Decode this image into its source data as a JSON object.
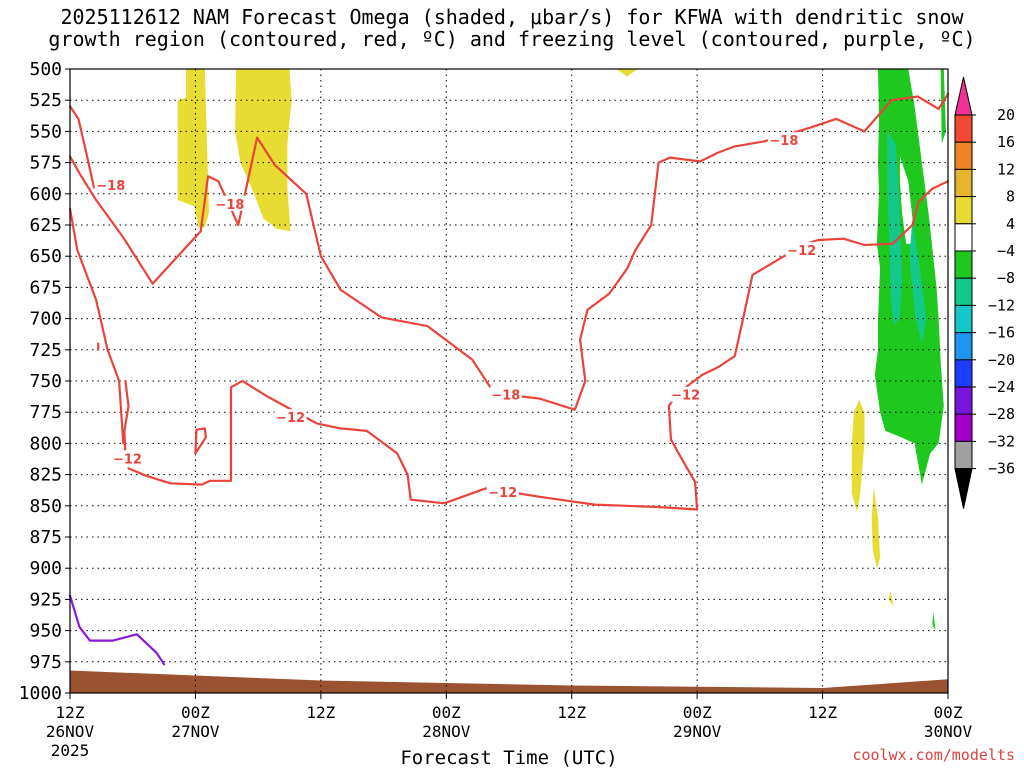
{
  "title_line1": "2025112612 NAM Forecast Omega (shaded, μbar/s) for KFWA with dendritic snow",
  "title_line2": "growth region (contoured, red, ºC) and freezing level (contoured, purple, ºC)",
  "credit": "coolwx.com/modelts",
  "chart_data": {
    "type": "contour",
    "xlabel": "Forecast Time (UTC)",
    "ylabel": "",
    "x_unit": "forecast hours from 2025-11-26 12Z",
    "xlim": [
      0,
      84
    ],
    "ylim": [
      1000,
      500
    ],
    "x_ticks": [
      {
        "x": 0,
        "label": "12Z",
        "date": "26NOV",
        "year": "2025"
      },
      {
        "x": 12,
        "label": "00Z",
        "date": "27NOV"
      },
      {
        "x": 24,
        "label": "12Z"
      },
      {
        "x": 36,
        "label": "00Z",
        "date": "28NOV"
      },
      {
        "x": 48,
        "label": "12Z"
      },
      {
        "x": 60,
        "label": "00Z",
        "date": "29NOV"
      },
      {
        "x": 72,
        "label": "12Z"
      },
      {
        "x": 84,
        "label": "00Z",
        "date": "30NOV"
      }
    ],
    "y_ticks": [
      500,
      525,
      550,
      575,
      600,
      625,
      650,
      675,
      700,
      725,
      750,
      775,
      800,
      825,
      850,
      875,
      900,
      925,
      950,
      975,
      1000
    ],
    "grid": true,
    "colorbar": {
      "labels": [
        "20",
        "16",
        "12",
        "8",
        "4",
        "−4",
        "−8",
        "−12",
        "−16",
        "−20",
        "−24",
        "−28",
        "−32",
        "−36"
      ],
      "colors": [
        "#f03296",
        "#f04b32",
        "#f08228",
        "#e6b42d",
        "#e6dc32",
        "#ffffff",
        "#1ec81e",
        "#14c88c",
        "#14c8c8",
        "#1e96f0",
        "#1e3cff",
        "#7814dc",
        "#a000c8",
        "#a0a0a0",
        "#000000"
      ]
    },
    "contour_labels": [
      {
        "text": "−18",
        "x": 3.9,
        "p": 593
      },
      {
        "text": "−18",
        "x": 15.3,
        "p": 608
      },
      {
        "text": "−18",
        "x": 41.7,
        "p": 761
      },
      {
        "text": "−18",
        "x": 68.3,
        "p": 557
      },
      {
        "text": "−12",
        "x": 5.5,
        "p": 812
      },
      {
        "text": "−12",
        "x": 21.1,
        "p": 779
      },
      {
        "text": "−12",
        "x": 41.4,
        "p": 839
      },
      {
        "text": "−12",
        "x": 58.9,
        "p": 761
      },
      {
        "text": "−12",
        "x": 70.0,
        "p": 645
      }
    ],
    "series": [
      {
        "name": "−18",
        "color": "#e8443c",
        "paths": [
          [
            [
              0,
              530
            ],
            [
              0.8,
              540
            ],
            [
              1.5,
              565
            ],
            [
              2.3,
              595
            ]
          ],
          [
            [
              0,
              612
            ],
            [
              0.7,
              645
            ],
            [
              2.5,
              685
            ],
            [
              3.6,
              725
            ],
            [
              4.7,
              750
            ],
            [
              5.1,
              800
            ]
          ],
          [
            [
              0,
              570
            ],
            [
              1.0,
              585
            ],
            [
              2.5,
              605
            ],
            [
              5.1,
              635
            ],
            [
              7.9,
              672
            ],
            [
              12.5,
              630
            ],
            [
              13.2,
              586
            ],
            [
              14.2,
              590
            ],
            [
              16.1,
              625
            ],
            [
              17.9,
              555
            ],
            [
              19.6,
              577
            ],
            [
              22.6,
              600
            ],
            [
              24.0,
              650
            ],
            [
              25.9,
              677
            ],
            [
              29.8,
              699
            ],
            [
              34.2,
              706
            ],
            [
              38.5,
              733
            ],
            [
              40.6,
              760
            ],
            [
              44.9,
              764
            ],
            [
              48.3,
              773
            ],
            [
              49.3,
              750
            ],
            [
              48.8,
              717
            ],
            [
              49.5,
              693
            ],
            [
              51.6,
              680
            ],
            [
              53.3,
              660
            ],
            [
              54.1,
              645
            ],
            [
              55.6,
              625
            ],
            [
              56.3,
              575
            ],
            [
              57.4,
              571
            ],
            [
              59.3,
              573
            ],
            [
              60.3,
              574
            ],
            [
              62.0,
              567
            ],
            [
              63.6,
              562
            ],
            [
              66.4,
              558
            ],
            [
              70.8,
              547
            ],
            [
              73.3,
              540
            ],
            [
              76.0,
              550
            ],
            [
              78.6,
              525
            ],
            [
              81.1,
              522
            ],
            [
              83.1,
              532
            ],
            [
              84,
              520
            ]
          ]
        ]
      },
      {
        "name": "−12",
        "color": "#e8443c",
        "paths": [
          [
            [
              5.3,
              810
            ],
            [
              5.2,
              790
            ],
            [
              5.6,
              770
            ],
            [
              5.3,
              750
            ]
          ],
          [
            [
              5.6,
              820
            ],
            [
              7.3,
              826
            ],
            [
              9.6,
              832
            ],
            [
              12.6,
              833
            ],
            [
              13.4,
              830
            ],
            [
              15.4,
              830
            ],
            [
              15.4,
              755
            ],
            [
              16.5,
              750
            ],
            [
              18.8,
              762
            ],
            [
              23.6,
              784
            ],
            [
              25.9,
              788
            ],
            [
              28.4,
              790
            ],
            [
              31.3,
              808
            ],
            [
              32.3,
              825
            ],
            [
              32.6,
              845
            ],
            [
              35.8,
              848
            ],
            [
              39.8,
              836
            ],
            [
              45.1,
              843
            ],
            [
              50.2,
              849
            ],
            [
              56.2,
              851
            ],
            [
              60,
              853
            ],
            [
              59.8,
              831
            ],
            [
              58.5,
              812
            ],
            [
              57.5,
              797
            ],
            [
              57.3,
              770
            ],
            [
              58.1,
              760
            ],
            [
              60.5,
              745
            ],
            [
              62.0,
              739
            ],
            [
              63.6,
              730
            ],
            [
              64.4,
              700
            ],
            [
              65.3,
              665
            ],
            [
              68.9,
              647
            ],
            [
              70.4,
              640
            ],
            [
              71.6,
              637
            ],
            [
              74.0,
              636
            ],
            [
              76.0,
              641
            ],
            [
              78.7,
              640
            ],
            [
              80.6,
              625
            ],
            [
              81.2,
              606
            ],
            [
              82.5,
              596
            ],
            [
              84,
              590
            ]
          ],
          [
            [
              12.0,
              808
            ],
            [
              13.0,
              795
            ],
            [
              12.9,
              788
            ],
            [
              12.1,
              789
            ],
            [
              12.0,
              808
            ]
          ],
          [
            [
              2.7,
              720
            ],
            [
              2.7,
              725
            ]
          ]
        ]
      },
      {
        "name": "freezing level",
        "color": "#8a1ad6",
        "paths": [
          [
            [
              0,
              922
            ],
            [
              0.9,
              947
            ],
            [
              1.9,
              958
            ],
            [
              4.1,
              958
            ],
            [
              6.4,
              953
            ],
            [
              8.3,
              968
            ],
            [
              9.0,
              977
            ]
          ]
        ]
      }
    ],
    "shaded_regions": [
      {
        "value_range": "4 to 8",
        "color": "#e6dc32",
        "polygons": [
          [
            [
              10.3,
              525
            ],
            [
              11.1,
              523
            ],
            [
              11.1,
              500
            ],
            [
              12.0,
              500
            ],
            [
              12.9,
              500
            ],
            [
              13.3,
              615
            ],
            [
              12.9,
              627
            ],
            [
              12.3,
              627
            ],
            [
              11.9,
              610
            ],
            [
              10.3,
              605
            ]
          ],
          [
            [
              15.9,
              500
            ],
            [
              16.8,
              500
            ],
            [
              18.9,
              500
            ],
            [
              20.1,
              500
            ],
            [
              21.0,
              500
            ],
            [
              21.2,
              525
            ],
            [
              20.8,
              560
            ],
            [
              20.8,
              595
            ],
            [
              21.1,
              630
            ],
            [
              19.8,
              628
            ],
            [
              18.5,
              620
            ],
            [
              17.6,
              600
            ],
            [
              16.3,
              575
            ],
            [
              15.8,
              550
            ]
          ],
          [
            [
              52.3,
              500
            ],
            [
              54.3,
              500
            ],
            [
              53.3,
              506
            ]
          ],
          [
            [
              75.5,
              765
            ],
            [
              76.0,
              775
            ],
            [
              76.0,
              800
            ],
            [
              75.6,
              840
            ],
            [
              75.3,
              855
            ],
            [
              74.8,
              840
            ],
            [
              74.8,
              800
            ],
            [
              75.0,
              775
            ]
          ],
          [
            [
              76.9,
              835
            ],
            [
              77.3,
              860
            ],
            [
              77.5,
              892
            ],
            [
              77.2,
              900
            ],
            [
              76.8,
              885
            ],
            [
              76.7,
              860
            ]
          ],
          [
            [
              78.5,
              918
            ],
            [
              78.8,
              930
            ],
            [
              78.3,
              925
            ]
          ]
        ]
      },
      {
        "value_range": "-8 to -4",
        "color": "#1ec81e",
        "polygons": [
          [
            [
              77.3,
              500
            ],
            [
              80.2,
              500
            ],
            [
              80.8,
              530
            ],
            [
              81.5,
              575
            ],
            [
              82.2,
              620
            ],
            [
              82.9,
              675
            ],
            [
              83.1,
              700
            ],
            [
              83.3,
              735
            ],
            [
              83.6,
              770
            ],
            [
              83.1,
              800
            ],
            [
              82.3,
              808
            ],
            [
              81.5,
              833
            ],
            [
              80.8,
              800
            ],
            [
              79.5,
              795
            ],
            [
              78.0,
              790
            ],
            [
              77.5,
              775
            ],
            [
              77.0,
              745
            ],
            [
              77.3,
              725
            ],
            [
              77.3,
              700
            ],
            [
              77.5,
              660
            ],
            [
              77.2,
              640
            ],
            [
              77.4,
              600
            ],
            [
              77.3,
              575
            ],
            [
              77.4,
              540
            ]
          ],
          [
            [
              83.3,
              500
            ],
            [
              83.6,
              500
            ],
            [
              83.8,
              550
            ],
            [
              83.4,
              560
            ]
          ],
          [
            [
              82.6,
              935
            ],
            [
              82.8,
              950
            ],
            [
              82.5,
              945
            ]
          ]
        ]
      },
      {
        "value_range": "-12 to -8",
        "color": "#14c88c",
        "polygons": [
          [
            [
              78.2,
              550
            ],
            [
              79.0,
              560
            ],
            [
              79.3,
              600
            ],
            [
              79.5,
              640
            ],
            [
              79.6,
              670
            ],
            [
              79.4,
              700
            ],
            [
              78.8,
              705
            ],
            [
              78.5,
              680
            ],
            [
              78.4,
              640
            ],
            [
              78.2,
              600
            ]
          ],
          [
            [
              80.1,
              590
            ],
            [
              80.6,
              620
            ],
            [
              81.3,
              660
            ],
            [
              81.9,
              700
            ],
            [
              81.5,
              720
            ],
            [
              80.9,
              700
            ],
            [
              80.4,
              660
            ],
            [
              80.2,
              620
            ]
          ]
        ]
      },
      {
        "value_range": "4 to -4",
        "color": "#ffffff",
        "polygons": [
          [
            [
              79.4,
              570
            ],
            [
              80.2,
              590
            ],
            [
              80.6,
              620
            ],
            [
              80.4,
              640
            ],
            [
              80.0,
              640
            ],
            [
              79.6,
              615
            ],
            [
              79.4,
              590
            ]
          ]
        ]
      }
    ],
    "terrain": {
      "color": "#9b5230",
      "top_pressure": [
        [
          0,
          982
        ],
        [
          12,
          986
        ],
        [
          24,
          990
        ],
        [
          36,
          992
        ],
        [
          48,
          994
        ],
        [
          60,
          995
        ],
        [
          72,
          996
        ],
        [
          84,
          989
        ]
      ]
    }
  }
}
